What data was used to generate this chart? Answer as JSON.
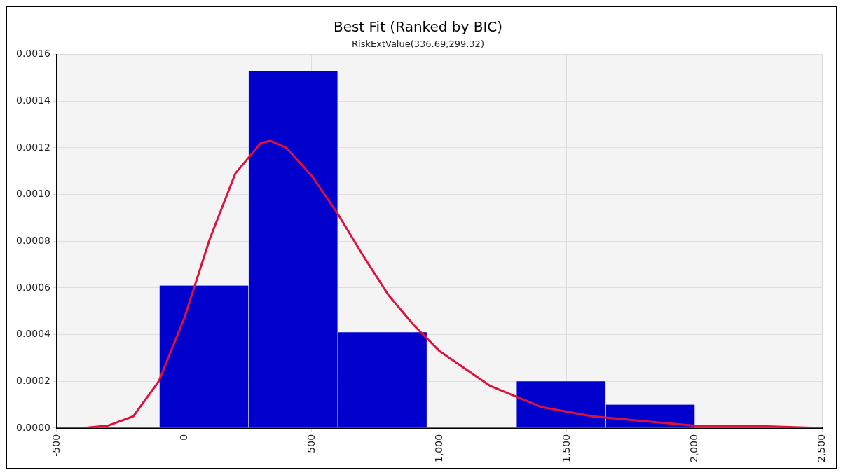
{
  "chart_data": {
    "type": "histogram",
    "title": "Best Fit (Ranked by BIC)",
    "subtitle": "RiskExtValue(336.69,299.32)",
    "bins": [
      -98,
      252,
      602,
      952,
      1302,
      1652,
      2002
    ],
    "values": [
      0.00061,
      0.00153,
      0.00041,
      0,
      0.0002,
      0.0001
    ],
    "color": "#0000cc",
    "series": [
      {
        "type": "line",
        "color": "#e0103a",
        "x": [
          -500,
          -400,
          -300,
          -200,
          -100,
          0,
          100,
          200,
          300,
          337,
          400,
          500,
          600,
          700,
          800,
          900,
          1000,
          1200,
          1400,
          1600,
          1800,
          2000,
          2200,
          2500
        ],
        "values": [
          0,
          0,
          1e-05,
          5e-05,
          0.0002,
          0.00047,
          0.00081,
          0.00109,
          0.00122,
          0.00123,
          0.0012,
          0.00108,
          0.00092,
          0.00074,
          0.00057,
          0.00044,
          0.00033,
          0.00018,
          9e-05,
          5e-05,
          3e-05,
          1e-05,
          1e-05,
          0
        ]
      }
    ],
    "xlim": [
      -500,
      2500
    ],
    "xticks": [
      -500,
      0,
      500,
      {
        "value": 1000,
        "label": "1,000"
      },
      {
        "value": 1500,
        "label": "1,500"
      },
      {
        "value": 2000,
        "label": "2,000"
      },
      {
        "value": 2500,
        "label": "2,500"
      }
    ],
    "ylim": [
      0,
      0.0016
    ],
    "yticks": [
      {
        "value": 0,
        "label": "0.0000"
      },
      {
        "value": 0.0002,
        "label": "0.0002"
      },
      {
        "value": 0.0004,
        "label": "0.0004"
      },
      {
        "value": 0.0006,
        "label": "0.0006"
      },
      {
        "value": 0.0008,
        "label": "0.0008"
      },
      {
        "value": 0.001,
        "label": "0.0010"
      },
      {
        "value": 0.0012,
        "label": "0.0012"
      },
      {
        "value": 0.0014,
        "label": "0.0014"
      },
      {
        "value": 0.0016,
        "label": "0.0016"
      }
    ],
    "grid": true,
    "legend": false,
    "marker": "none",
    "line_style": "solid"
  }
}
